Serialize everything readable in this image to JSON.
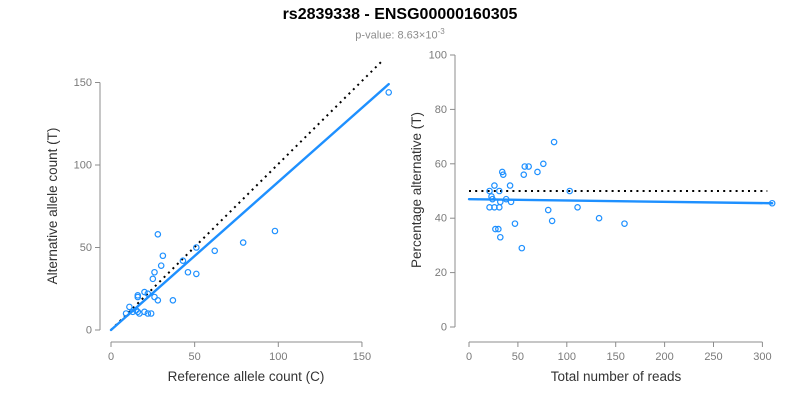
{
  "header": {
    "title": "rs2839338 - ENSG00000160305",
    "subtitle_prefix": "p-value: 8.63×10",
    "subtitle_exponent": "-3"
  },
  "colors": {
    "accent_blue": "#1E90FF",
    "dotted_line": "#000000",
    "axis": "#8c8c8c",
    "tick_text": "#7a7a7a",
    "label_text": "#333333",
    "title_text": "#000000",
    "subtitle_text": "#8c8c8c"
  },
  "chart_data": [
    {
      "type": "scatter",
      "xlabel": "Reference allele count (C)",
      "ylabel": "Alternative allele count (T)",
      "xticks": [
        0,
        50,
        100,
        150
      ],
      "yticks": [
        0,
        50,
        100,
        150
      ],
      "xlim": [
        0,
        170
      ],
      "ylim": [
        0,
        165
      ],
      "grid": false,
      "points": [
        [
          9,
          10
        ],
        [
          11,
          14
        ],
        [
          13,
          11
        ],
        [
          15,
          12
        ],
        [
          16,
          11
        ],
        [
          16,
          20
        ],
        [
          16,
          21
        ],
        [
          17,
          10
        ],
        [
          20,
          11
        ],
        [
          20,
          23
        ],
        [
          22,
          10
        ],
        [
          22,
          22
        ],
        [
          24,
          10
        ],
        [
          26,
          20
        ],
        [
          28,
          18
        ],
        [
          25,
          31
        ],
        [
          26,
          35
        ],
        [
          28,
          58
        ],
        [
          30,
          39
        ],
        [
          31,
          45
        ],
        [
          37,
          18
        ],
        [
          43,
          42
        ],
        [
          46,
          35
        ],
        [
          51,
          34
        ],
        [
          51,
          50
        ],
        [
          62,
          48
        ],
        [
          79,
          53
        ],
        [
          98,
          60
        ],
        [
          166,
          144
        ]
      ],
      "lines": [
        {
          "name": "identity-dotted-line",
          "style": "dotted",
          "color": "#000000",
          "x1": 0,
          "y1": 0,
          "x2": 163,
          "y2": 164
        },
        {
          "name": "regression-line",
          "style": "solid",
          "color": "#1E90FF",
          "x1": 0,
          "y1": 0,
          "x2": 166,
          "y2": 149
        }
      ]
    },
    {
      "type": "scatter",
      "xlabel": "Total number of reads",
      "ylabel": "Percentage alternative (T)",
      "xticks": [
        0,
        50,
        100,
        150,
        200,
        250,
        300
      ],
      "yticks": [
        0,
        20,
        40,
        60,
        80,
        100
      ],
      "xlim": [
        0,
        315
      ],
      "ylim": [
        0,
        100
      ],
      "grid": false,
      "points": [
        [
          21,
          50
        ],
        [
          21,
          44
        ],
        [
          23,
          48
        ],
        [
          24,
          47
        ],
        [
          26,
          52
        ],
        [
          26,
          44
        ],
        [
          27,
          36
        ],
        [
          30,
          36
        ],
        [
          31,
          44
        ],
        [
          31,
          50
        ],
        [
          32,
          46
        ],
        [
          32,
          33
        ],
        [
          34,
          57
        ],
        [
          35,
          56
        ],
        [
          38,
          47
        ],
        [
          42,
          52
        ],
        [
          43,
          46
        ],
        [
          47,
          38
        ],
        [
          54,
          29
        ],
        [
          56,
          56
        ],
        [
          57,
          59
        ],
        [
          61,
          59
        ],
        [
          70,
          57
        ],
        [
          76,
          60
        ],
        [
          81,
          43
        ],
        [
          85,
          39
        ],
        [
          87,
          68
        ],
        [
          103,
          50
        ],
        [
          111,
          44
        ],
        [
          133,
          40
        ],
        [
          159,
          38
        ],
        [
          310,
          45.5
        ]
      ],
      "lines": [
        {
          "name": "fifty-percent-dotted-line",
          "style": "dotted",
          "color": "#000000",
          "x1": 0,
          "y1": 50,
          "x2": 305,
          "y2": 50
        },
        {
          "name": "regression-line",
          "style": "solid",
          "color": "#1E90FF",
          "x1": 0,
          "y1": 47,
          "x2": 310,
          "y2": 45.5
        }
      ]
    }
  ]
}
